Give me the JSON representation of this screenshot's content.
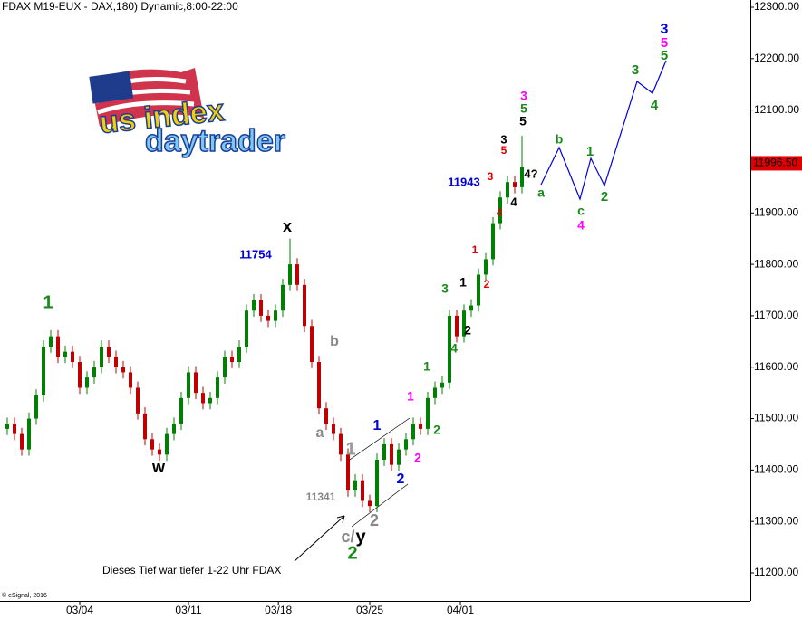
{
  "chart_data": {
    "type": "candlestick",
    "title": "FDAX M19-EUX - DAX,180) Dynamic,8:00-22:00",
    "credit": "© eSignal, 2016",
    "logo": {
      "line1": "us index",
      "line2": "daytrader"
    },
    "x": [
      1,
      2,
      3,
      4,
      5,
      6,
      7,
      8,
      9,
      10,
      11,
      12,
      13,
      14,
      15,
      16,
      17,
      18,
      19,
      20,
      21,
      22,
      23,
      24,
      25,
      26,
      27,
      28,
      29,
      30,
      31,
      32,
      33,
      34,
      35,
      36,
      37,
      38,
      39,
      40,
      41,
      42,
      43,
      44,
      45,
      46,
      47,
      48,
      49,
      50,
      51,
      52,
      53,
      54,
      55,
      56,
      57,
      58,
      59,
      60,
      61,
      62,
      63,
      64,
      65,
      66,
      67,
      68,
      69,
      70,
      71,
      72
    ],
    "open": [
      11480,
      11490,
      11470,
      11440,
      11500,
      11545,
      11640,
      11660,
      11620,
      11630,
      11610,
      11560,
      11580,
      11600,
      11640,
      11620,
      11600,
      11590,
      11560,
      11510,
      11460,
      11440,
      11430,
      11470,
      11490,
      11540,
      11590,
      11550,
      11530,
      11540,
      11580,
      11620,
      11610,
      11640,
      11710,
      11730,
      11700,
      11690,
      11710,
      11760,
      11800,
      11760,
      11680,
      11610,
      11520,
      11490,
      11470,
      11430,
      11360,
      11380,
      11340,
      11330,
      11420,
      11450,
      11410,
      11440,
      11460,
      11490,
      11480,
      11540,
      11560,
      11570,
      11700,
      11660,
      11710,
      11720,
      11780,
      11810,
      11880,
      11930,
      11960,
      11950
    ],
    "high": [
      11502,
      11502,
      11482,
      11512,
      11557,
      11652,
      11672,
      11672,
      11642,
      11642,
      11622,
      11592,
      11612,
      11652,
      11652,
      11632,
      11612,
      11602,
      11572,
      11522,
      11472,
      11452,
      11482,
      11502,
      11552,
      11602,
      11602,
      11562,
      11552,
      11592,
      11632,
      11632,
      11652,
      11722,
      11742,
      11742,
      11712,
      11722,
      11772,
      11850,
      11812,
      11772,
      11692,
      11622,
      11532,
      11502,
      11482,
      11442,
      11392,
      11392,
      11352,
      11432,
      11462,
      11462,
      11452,
      11472,
      11502,
      11502,
      11552,
      11572,
      11582,
      11712,
      11712,
      11722,
      11732,
      11792,
      11822,
      11892,
      11942,
      11972,
      11972,
      12050
    ],
    "low": [
      11468,
      11458,
      11428,
      11428,
      11488,
      11533,
      11628,
      11608,
      11608,
      11598,
      11548,
      11548,
      11568,
      11588,
      11608,
      11588,
      11578,
      11548,
      11498,
      11448,
      11428,
      11418,
      11418,
      11458,
      11478,
      11528,
      11538,
      11518,
      11518,
      11528,
      11568,
      11598,
      11598,
      11628,
      11698,
      11688,
      11678,
      11678,
      11698,
      11748,
      11748,
      11668,
      11598,
      11508,
      11478,
      11458,
      11418,
      11348,
      11348,
      11328,
      11318,
      11318,
      11408,
      11398,
      11398,
      11428,
      11448,
      11468,
      11468,
      11528,
      11548,
      11558,
      11648,
      11648,
      11698,
      11708,
      11768,
      11798,
      11868,
      11918,
      11938,
      11938
    ],
    "close": [
      11490,
      11470,
      11440,
      11500,
      11545,
      11640,
      11660,
      11620,
      11630,
      11610,
      11560,
      11580,
      11600,
      11640,
      11620,
      11600,
      11590,
      11560,
      11510,
      11460,
      11440,
      11430,
      11470,
      11490,
      11540,
      11590,
      11550,
      11530,
      11540,
      11580,
      11620,
      11610,
      11640,
      11710,
      11730,
      11700,
      11690,
      11710,
      11760,
      11800,
      11760,
      11680,
      11610,
      11520,
      11490,
      11470,
      11430,
      11360,
      11380,
      11340,
      11330,
      11420,
      11450,
      11410,
      11440,
      11460,
      11490,
      11480,
      11540,
      11560,
      11570,
      11700,
      11660,
      11710,
      11720,
      11780,
      11810,
      11880,
      11930,
      11960,
      11950,
      11990
    ],
    "up_color": "#008000",
    "down_color": "#c00000",
    "xlim": [
      0,
      103.5
    ],
    "xticks": [
      {
        "value": 11,
        "label": "03/04"
      },
      {
        "value": 26,
        "label": "03/11"
      },
      {
        "value": 38.4,
        "label": "03/18"
      },
      {
        "value": 51,
        "label": "03/25"
      },
      {
        "value": 63.5,
        "label": "04/01"
      }
    ],
    "ylim": [
      11200,
      12300
    ],
    "yticks": [
      {
        "value": 11200,
        "label": "11200.00"
      },
      {
        "value": 11300,
        "label": "11300.00"
      },
      {
        "value": 11400,
        "label": "11400.00"
      },
      {
        "value": 11500,
        "label": "11500.00"
      },
      {
        "value": 11600,
        "label": "11600.00"
      },
      {
        "value": 11700,
        "label": "11700.00"
      },
      {
        "value": 11800,
        "label": "11800.00"
      },
      {
        "value": 11900,
        "label": "11900.00"
      },
      {
        "value": 12000,
        "label": "12000.00"
      },
      {
        "value": 12100,
        "label": "12100.00"
      },
      {
        "value": 12200,
        "label": "12200.00"
      },
      {
        "value": 12300,
        "label": "12300.00"
      }
    ],
    "last_price": {
      "value": 11996.5,
      "label": "11996.50",
      "color": "#e00000"
    },
    "annotations": [
      {
        "text": "1",
        "color": "#1a8a1a"
      },
      {
        "text": "w",
        "color": "#000000"
      },
      {
        "text": "x",
        "color": "#000000"
      },
      {
        "text": "11754",
        "color": "#0000dd"
      },
      {
        "text": "b",
        "color": "#888888"
      },
      {
        "text": "a",
        "color": "#888888"
      },
      {
        "text": "1",
        "color": "#999999"
      },
      {
        "text": "11341",
        "color": "#888888"
      },
      {
        "text": "c/",
        "color": "#888888"
      },
      {
        "text": "y",
        "color": "#000000"
      },
      {
        "text": "2",
        "color": "#888888"
      },
      {
        "text": "2",
        "color": "#1a8a1a"
      },
      {
        "text": "1",
        "color": "#0000dd"
      },
      {
        "text": "2",
        "color": "#0000dd"
      },
      {
        "text": "1",
        "color": "#ff00ff"
      },
      {
        "text": "2",
        "color": "#ff00ff"
      },
      {
        "text": "1",
        "color": "#1a8a1a"
      },
      {
        "text": "2",
        "color": "#1a8a1a"
      },
      {
        "text": "3",
        "color": "#1a8a1a"
      },
      {
        "text": "4",
        "color": "#1a8a1a"
      },
      {
        "text": "1",
        "color": "#000000"
      },
      {
        "text": "2",
        "color": "#000000"
      },
      {
        "text": "1",
        "color": "#e00000"
      },
      {
        "text": "2",
        "color": "#e00000"
      },
      {
        "text": "11943",
        "color": "#0000dd"
      },
      {
        "text": "3",
        "color": "#e00000"
      },
      {
        "text": "4",
        "color": "#e00000"
      },
      {
        "text": "3",
        "color": "#000000"
      },
      {
        "text": "5",
        "color": "#e00000"
      },
      {
        "text": "4",
        "color": "#000000"
      },
      {
        "text": "5",
        "color": "#000000"
      },
      {
        "text": "3",
        "color": "#ff00ff"
      },
      {
        "text": "5",
        "color": "#1a8a1a"
      },
      {
        "text": "4?",
        "color": "#000000"
      },
      {
        "text": "a",
        "color": "#1a8a1a"
      },
      {
        "text": "b",
        "color": "#1a8a1a"
      },
      {
        "text": "1",
        "color": "#1a8a1a"
      },
      {
        "text": "c",
        "color": "#1a8a1a"
      },
      {
        "text": "4",
        "color": "#ff00ff"
      },
      {
        "text": "2",
        "color": "#1a8a1a"
      },
      {
        "text": "3",
        "color": "#1a8a1a"
      },
      {
        "text": "4",
        "color": "#1a8a1a"
      },
      {
        "text": "3",
        "color": "#0000dd"
      },
      {
        "text": "5",
        "color": "#ff00ff"
      },
      {
        "text": "5",
        "color": "#1a8a1a"
      },
      {
        "text": "Dieses Tief war tiefer 1-22 Uhr FDAX",
        "color": "#000000"
      }
    ]
  }
}
